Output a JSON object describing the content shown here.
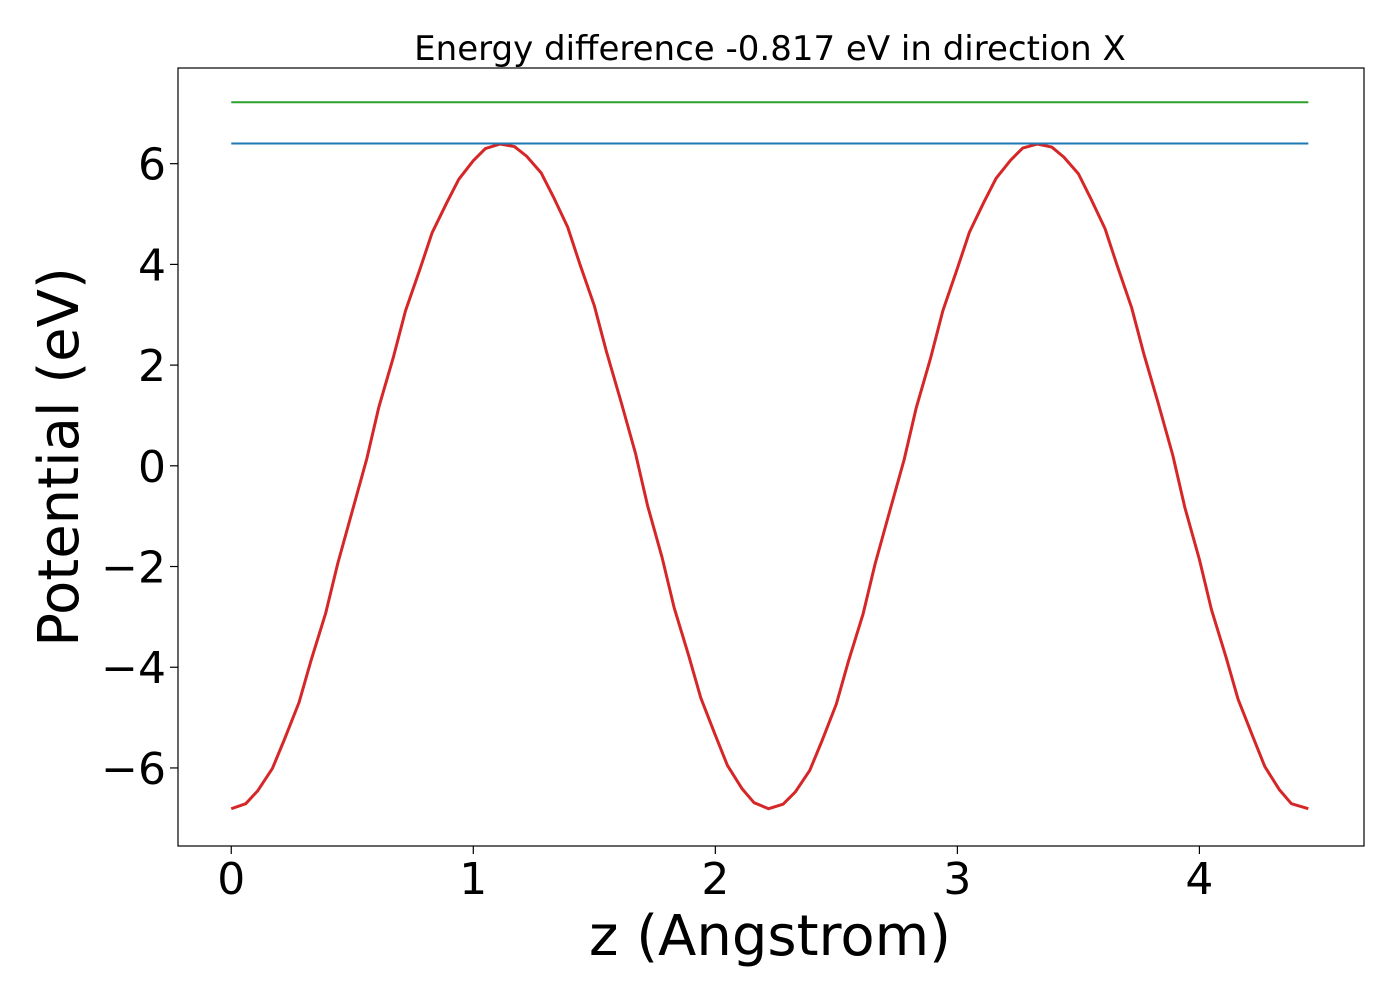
{
  "chart_data": {
    "type": "line",
    "title": "Energy difference -0.817 eV in direction X",
    "xlabel": "z (Angstrom)",
    "ylabel": "Potential (eV)",
    "xlim": [
      -0.22,
      4.68
    ],
    "ylim": [
      -7.55,
      7.9
    ],
    "xticks": [
      0,
      1,
      2,
      3,
      4
    ],
    "xtick_labels": [
      "0",
      "1",
      "2",
      "3",
      "4"
    ],
    "yticks": [
      -6,
      -4,
      -2,
      0,
      2,
      4,
      6
    ],
    "ytick_labels": [
      "−6",
      "−4",
      "−2",
      "0",
      "2",
      "4",
      "6"
    ],
    "grid": false,
    "series": [
      {
        "kind": "curve",
        "color": "#d62728",
        "x": [
          0.0,
          0.06,
          0.11,
          0.17,
          0.22,
          0.28,
          0.33,
          0.39,
          0.44,
          0.5,
          0.56,
          0.61,
          0.67,
          0.72,
          0.78,
          0.83,
          0.89,
          0.94,
          1.0,
          1.05,
          1.11,
          1.17,
          1.22,
          1.28,
          1.33,
          1.39,
          1.44,
          1.5,
          1.55,
          1.61,
          1.67,
          1.72,
          1.78,
          1.83,
          1.89,
          1.94,
          2.0,
          2.05,
          2.11,
          2.16,
          2.22,
          2.28,
          2.33,
          2.39,
          2.44,
          2.5,
          2.55,
          2.61,
          2.66,
          2.72,
          2.78,
          2.83,
          2.89,
          2.94,
          3.0,
          3.05,
          3.11,
          3.16,
          3.22,
          3.27,
          3.33,
          3.39,
          3.44,
          3.5,
          3.55,
          3.61,
          3.66,
          3.72,
          3.77,
          3.83,
          3.89,
          3.94,
          4.0,
          4.05,
          4.11,
          4.16,
          4.22,
          4.27,
          4.33,
          4.38,
          4.45
        ],
        "y": [
          -6.81,
          -6.71,
          -6.45,
          -6.01,
          -5.43,
          -4.7,
          -3.86,
          -2.93,
          -1.94,
          -0.9,
          0.14,
          1.17,
          2.16,
          3.08,
          3.91,
          4.63,
          5.22,
          5.69,
          6.06,
          6.3,
          6.39,
          6.34,
          6.15,
          5.82,
          5.35,
          4.74,
          4.01,
          3.18,
          2.27,
          1.28,
          0.25,
          -0.79,
          -1.82,
          -2.82,
          -3.77,
          -4.61,
          -5.35,
          -5.95,
          -6.41,
          -6.69,
          -6.81,
          -6.72,
          -6.48,
          -6.05,
          -5.47,
          -4.73,
          -3.88,
          -2.95,
          -1.95,
          -0.91,
          0.12,
          1.15,
          2.15,
          3.08,
          3.92,
          4.64,
          5.24,
          5.71,
          6.07,
          6.31,
          6.39,
          6.33,
          6.13,
          5.8,
          5.32,
          4.71,
          3.98,
          3.14,
          2.23,
          1.24,
          0.21,
          -0.83,
          -1.86,
          -2.86,
          -3.8,
          -4.64,
          -5.37,
          -5.97,
          -6.43,
          -6.71,
          -6.81
        ]
      },
      {
        "kind": "hline",
        "color": "#1f77b4",
        "y": 6.4,
        "x_range": [
          0.0,
          4.45
        ]
      },
      {
        "kind": "hline",
        "color": "#2ca02c",
        "y": 7.22,
        "x_range": [
          0.0,
          4.45
        ]
      }
    ]
  }
}
